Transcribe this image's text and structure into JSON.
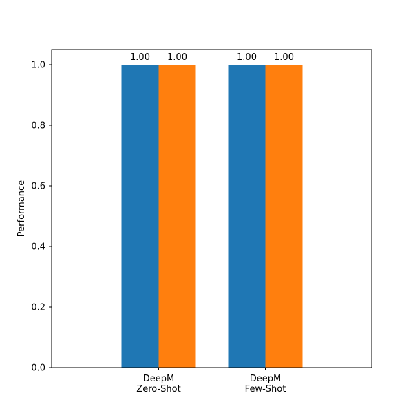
{
  "chart_data": {
    "type": "bar",
    "categories": [
      [
        "DeepM",
        "Zero-Shot"
      ],
      [
        "DeepM",
        "Few-Shot"
      ]
    ],
    "series": [
      {
        "values": [
          1.0,
          1.0
        ],
        "labels": [
          "1.00",
          "1.00"
        ],
        "color": "#1f77b4"
      },
      {
        "values": [
          1.0,
          1.0
        ],
        "labels": [
          "1.00",
          "1.00"
        ],
        "color": "#ff7f0e"
      }
    ],
    "ylabel": "Performance",
    "ylim": [
      0,
      1.05
    ],
    "yticks": [
      {
        "value": 0.0,
        "label": "0.0"
      },
      {
        "value": 0.2,
        "label": "0.2"
      },
      {
        "value": 0.4,
        "label": "0.4"
      },
      {
        "value": 0.6,
        "label": "0.6"
      },
      {
        "value": 0.8,
        "label": "0.8"
      },
      {
        "value": 1.0,
        "label": "1.0"
      }
    ],
    "grid": false,
    "legend": "none"
  }
}
